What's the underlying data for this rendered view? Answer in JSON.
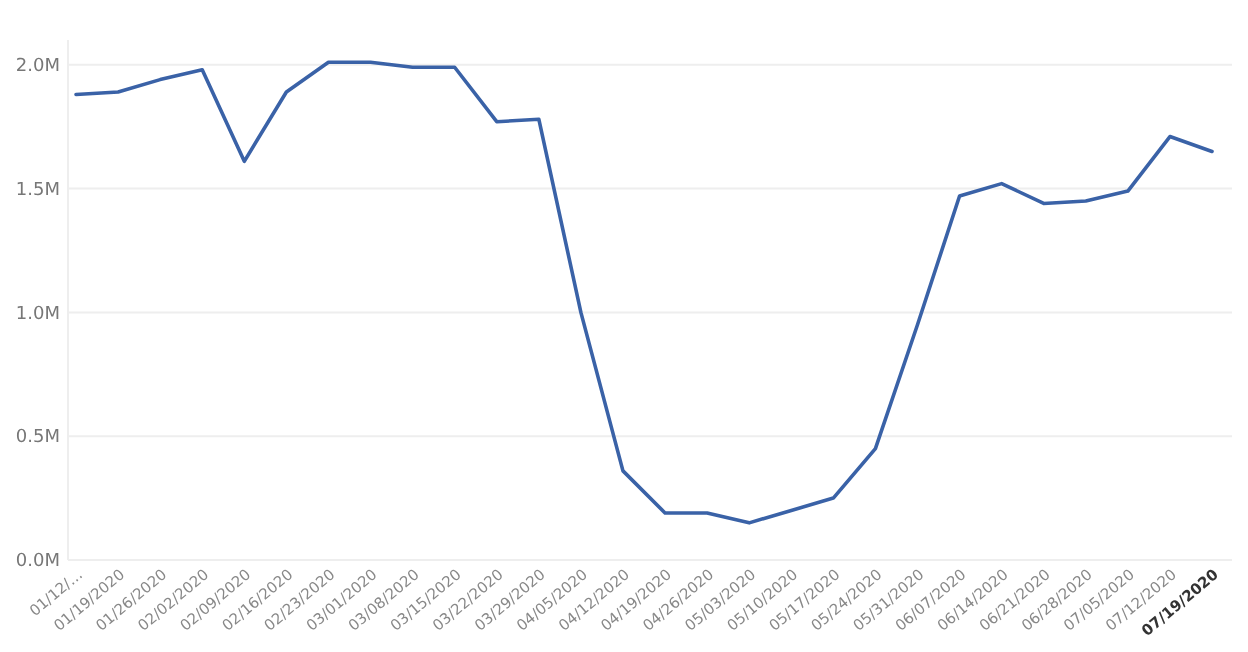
{
  "chart_data": {
    "type": "line",
    "categories": [
      "01/12/…",
      "01/19/2020",
      "01/26/2020",
      "02/02/2020",
      "02/09/2020",
      "02/16/2020",
      "02/23/2020",
      "03/01/2020",
      "03/08/2020",
      "03/15/2020",
      "03/22/2020",
      "03/29/2020",
      "04/05/2020",
      "04/12/2020",
      "04/19/2020",
      "04/26/2020",
      "05/03/2020",
      "05/10/2020",
      "05/17/2020",
      "05/24/2020",
      "05/31/2020",
      "06/07/2020",
      "06/14/2020",
      "06/21/2020",
      "06/28/2020",
      "07/05/2020",
      "07/12/2020",
      "07/19/2020"
    ],
    "series": [
      {
        "color": "#3a62a7",
        "values": [
          1880000,
          1890000,
          1940000,
          1980000,
          1610000,
          1890000,
          2010000,
          2010000,
          1990000,
          1990000,
          1770000,
          1780000,
          1000000,
          360000,
          190000,
          190000,
          150000,
          200000,
          250000,
          450000,
          950000,
          1470000,
          1520000,
          1440000,
          1450000,
          1490000,
          1710000,
          1650000
        ]
      }
    ],
    "ylim": [
      0,
      2100000
    ],
    "yticks": [
      {
        "value": 0,
        "label": "0.0M"
      },
      {
        "value": 500000,
        "label": "0.5M"
      },
      {
        "value": 1000000,
        "label": "1.0M"
      },
      {
        "value": 1500000,
        "label": "1.5M"
      },
      {
        "value": 2000000,
        "label": "2.0M"
      }
    ],
    "grid": "y",
    "marker": "none",
    "line_style": "solid"
  }
}
